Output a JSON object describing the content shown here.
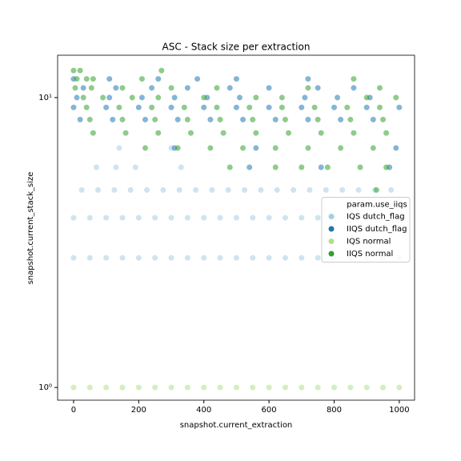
{
  "chart_data": {
    "type": "scatter",
    "title": "ASC - Stack size per extraction",
    "x_label": "snapshot.current_extraction",
    "y_label": "snapshot.current_stack_size",
    "xlim": [
      -49,
      1047
    ],
    "xticks": [
      0,
      200,
      400,
      600,
      800,
      1000
    ],
    "ylim": [
      0.904,
      14
    ],
    "yscale": "log",
    "yticks": [
      {
        "value": 1,
        "label": "10⁰"
      },
      {
        "value": 10,
        "label": "10¹"
      }
    ],
    "legend_title": "param.use_iiqs",
    "legend": "center right",
    "series": [
      {
        "name": "IQS dutch_flag",
        "color": "#a6cee3",
        "x": [
          0,
          50,
          100,
          150,
          200,
          250,
          300,
          350,
          400,
          450,
          500,
          550,
          600,
          650,
          700,
          750,
          800,
          850,
          900,
          950,
          1000,
          0,
          50,
          100,
          150,
          200,
          250,
          300,
          350,
          400,
          450,
          500,
          550,
          600,
          650,
          700,
          750,
          800,
          850,
          900,
          950,
          1000,
          25,
          75,
          125,
          175,
          225,
          275,
          325,
          375,
          425,
          475,
          525,
          575,
          625,
          675,
          725,
          775,
          825,
          875,
          925,
          975,
          70,
          130,
          190,
          330,
          140,
          300
        ],
        "values": [
          2.8,
          2.8,
          2.8,
          2.8,
          2.8,
          2.8,
          2.8,
          2.8,
          2.8,
          2.8,
          2.8,
          2.8,
          2.8,
          2.8,
          2.8,
          2.8,
          2.8,
          2.8,
          2.8,
          2.8,
          2.8,
          3.85,
          3.85,
          3.85,
          3.85,
          3.85,
          3.85,
          3.85,
          3.85,
          3.85,
          3.85,
          3.85,
          3.85,
          3.85,
          3.85,
          3.85,
          3.85,
          3.85,
          3.85,
          3.85,
          3.85,
          3.85,
          4.8,
          4.8,
          4.8,
          4.8,
          4.8,
          4.8,
          4.8,
          4.8,
          4.8,
          4.8,
          4.8,
          4.8,
          4.8,
          4.8,
          4.8,
          4.8,
          4.8,
          4.8,
          4.8,
          4.8,
          5.75,
          5.75,
          5.75,
          5.75,
          6.7,
          6.7
        ]
      },
      {
        "name": "IIQS dutch_flag",
        "color": "#1f78b4",
        "x": [
          20,
          120,
          220,
          320,
          420,
          520,
          620,
          720,
          820,
          920,
          0,
          100,
          200,
          300,
          400,
          500,
          600,
          700,
          800,
          900,
          1000,
          10,
          110,
          210,
          310,
          410,
          510,
          710,
          810,
          910,
          30,
          130,
          240,
          350,
          480,
          600,
          750,
          860,
          0,
          110,
          260,
          380,
          500,
          720,
          540,
          760,
          970,
          310,
          560,
          990
        ],
        "values": [
          8.4,
          8.4,
          8.4,
          8.4,
          8.4,
          8.4,
          8.4,
          8.4,
          8.4,
          8.4,
          9.25,
          9.25,
          9.25,
          9.25,
          9.25,
          9.25,
          9.25,
          9.25,
          9.25,
          9.25,
          9.25,
          10,
          10,
          10,
          10,
          10,
          10,
          10,
          10,
          10,
          10.8,
          10.8,
          10.8,
          10.8,
          10.8,
          10.8,
          10.8,
          10.8,
          11.6,
          11.6,
          11.6,
          11.6,
          11.6,
          11.6,
          5.75,
          5.75,
          5.75,
          6.7,
          6.7,
          6.7
        ]
      },
      {
        "name": "IQS normal",
        "color": "#b2df8a",
        "x": [
          0,
          50,
          100,
          150,
          200,
          250,
          300,
          350,
          400,
          450,
          500,
          550,
          600,
          650,
          700,
          750,
          800,
          850,
          900,
          950,
          1000
        ],
        "values": [
          1,
          1,
          1,
          1,
          1,
          1,
          1,
          1,
          1,
          1,
          1,
          1,
          1,
          1,
          1,
          1,
          1,
          1,
          1,
          1,
          1
        ]
      },
      {
        "name": "IIQS normal",
        "color": "#33a02c",
        "x": [
          0,
          20,
          270,
          10,
          40,
          60,
          210,
          860,
          5,
          55,
          150,
          300,
          440,
          720,
          940,
          30,
          90,
          180,
          260,
          400,
          560,
          640,
          900,
          990,
          40,
          140,
          240,
          340,
          440,
          540,
          640,
          740,
          840,
          940,
          50,
          150,
          250,
          350,
          450,
          550,
          650,
          750,
          850,
          950,
          60,
          160,
          260,
          360,
          460,
          560,
          660,
          760,
          860,
          960,
          220,
          320,
          420,
          520,
          620,
          720,
          820,
          920,
          480,
          620,
          700,
          780,
          880,
          960,
          930
        ],
        "values": [
          12.4,
          12.4,
          12.4,
          11.6,
          11.6,
          11.6,
          11.6,
          11.6,
          10.8,
          10.8,
          10.8,
          10.8,
          10.8,
          10.8,
          10.8,
          10,
          10,
          10,
          10,
          10,
          10,
          10,
          10,
          10,
          9.25,
          9.25,
          9.25,
          9.25,
          9.25,
          9.25,
          9.25,
          9.25,
          9.25,
          9.25,
          8.4,
          8.4,
          8.4,
          8.4,
          8.4,
          8.4,
          8.4,
          8.4,
          8.4,
          8.4,
          7.55,
          7.55,
          7.55,
          7.55,
          7.55,
          7.55,
          7.55,
          7.55,
          7.55,
          7.55,
          6.7,
          6.7,
          6.7,
          6.7,
          6.7,
          6.7,
          6.7,
          6.7,
          5.75,
          5.75,
          5.75,
          5.75,
          5.75,
          5.75,
          4.8
        ]
      }
    ]
  }
}
